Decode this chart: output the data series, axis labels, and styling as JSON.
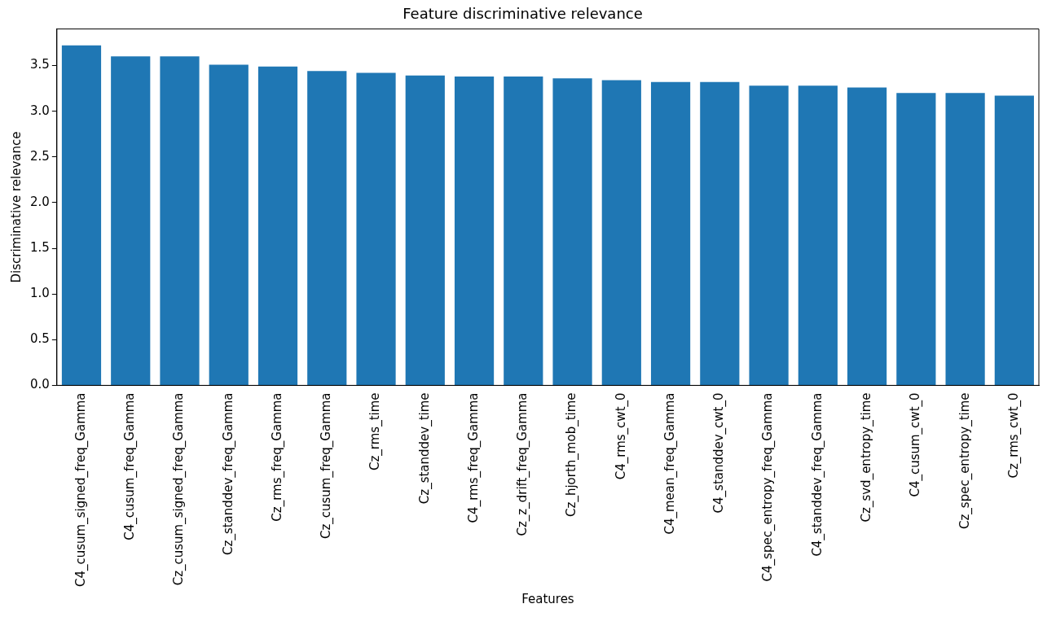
{
  "chart_data": {
    "type": "bar",
    "title": "Feature discriminative relevance",
    "xlabel": "Features",
    "ylabel": "Discriminative relevance",
    "categories": [
      "C4_cusum_signed_freq_Gamma",
      "C4_cusum_freq_Gamma",
      "Cz_cusum_signed_freq_Gamma",
      "Cz_standdev_freq_Gamma",
      "Cz_rms_freq_Gamma",
      "Cz_cusum_freq_Gamma",
      "Cz_rms_time",
      "Cz_standdev_time",
      "C4_rms_freq_Gamma",
      "Cz_z_drift_freq_Gamma",
      "Cz_hjorth_mob_time",
      "C4_rms_cwt_0",
      "C4_mean_freq_Gamma",
      "C4_standdev_cwt_0",
      "C4_spec_entropy_freq_Gamma",
      "C4_standdev_freq_Gamma",
      "Cz_svd_entropy_time",
      "C4_cusum_cwt_0",
      "Cz_spec_entropy_time",
      "Cz_rms_cwt_0"
    ],
    "values": [
      3.72,
      3.6,
      3.6,
      3.51,
      3.49,
      3.44,
      3.42,
      3.39,
      3.38,
      3.38,
      3.36,
      3.34,
      3.32,
      3.32,
      3.28,
      3.28,
      3.26,
      3.2,
      3.2,
      3.17
    ],
    "color": "#1f77b4",
    "ylim": [
      0,
      3.9
    ],
    "yticks": [
      {
        "value": 0,
        "label": "0.0"
      },
      0.5,
      {
        "value": 1,
        "label": "1.0"
      },
      1.5,
      {
        "value": 2,
        "label": "2.0"
      },
      2.5,
      {
        "value": 3,
        "label": "3.0"
      },
      3.5
    ],
    "grid": false,
    "legend": false
  }
}
